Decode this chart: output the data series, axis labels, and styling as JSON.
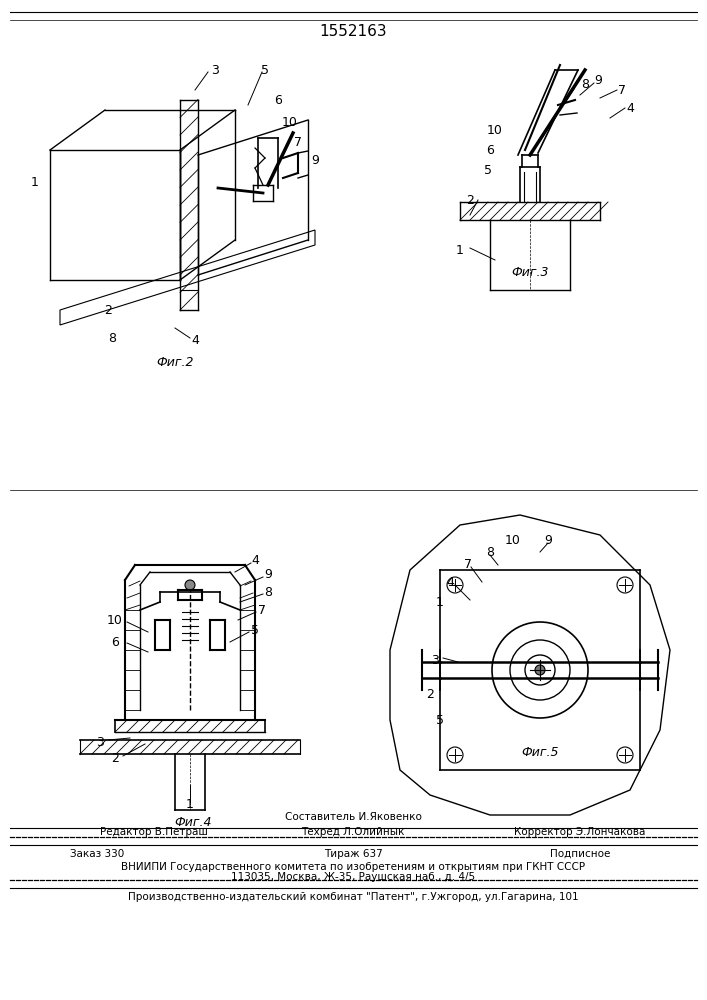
{
  "title": "1552163",
  "bg_color": "#ffffff",
  "lc": "#000000",
  "fig2_label": "Фиг.2",
  "fig3_label": "Фиг.3",
  "fig4_label": "Фиг.4",
  "fig5_label": "Фиг.5",
  "footer": {
    "sestavitel": "Составитель И.Яковенко",
    "redaktor": "Редактор В.Петраш",
    "tehred": "Техред Л.Олийнык",
    "korrektor": "Корректор Э.Лончакова",
    "zakaz": "Заказ 330",
    "tirazh": "Тираж 637",
    "podpisnoe": "Подписное",
    "vniip1": "ВНИИПИ Государственного комитета по изобретениям и открытиям при ГКНТ СССР",
    "vniip2": "113035, Москва, Ж-35, Раушская наб., д. 4/5",
    "patent": "Производственно-издательский комбинат \"Патент\", г.Ужгород, ул.Гагарина, 101"
  }
}
